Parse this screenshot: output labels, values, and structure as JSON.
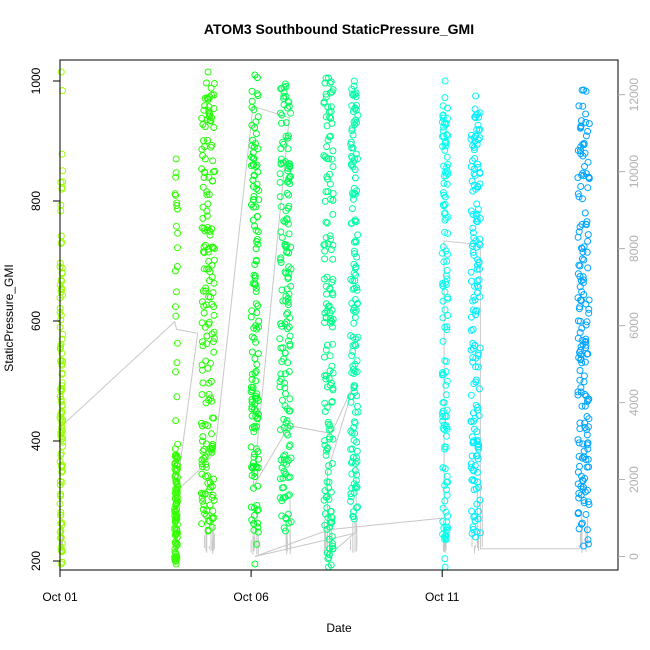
{
  "chart_data": {
    "type": "scatter",
    "title": "ATOM3 Southbound StaticPressure_GMI",
    "xlabel": "Date",
    "ylabel": "StaticPressure_GMI",
    "x_axis": {
      "type": "date",
      "ticks": [
        "Oct 01",
        "Oct 06",
        "Oct 11"
      ],
      "range_days": [
        0.0,
        14.6
      ]
    },
    "y_axis_left": {
      "range": [
        185,
        1035
      ],
      "ticks": [
        200,
        400,
        600,
        800,
        1000
      ]
    },
    "y_axis_right": {
      "color": "#b0b0b0",
      "range": [
        -350,
        12900
      ],
      "ticks": [
        0,
        2000,
        4000,
        6000,
        8000,
        10000,
        12000
      ]
    },
    "marker": "open-circle",
    "line_series": {
      "color": "#c8c8c8",
      "axis": "right"
    },
    "series": [
      {
        "x_start": 0.0,
        "x_end": 0.07,
        "y_min": 195,
        "y_max": 1015,
        "dense_min": 195,
        "dense_max": 700,
        "color": "#99ff00"
      },
      {
        "x_start": 3.0,
        "x_end": 3.08,
        "y_min": 195,
        "y_max": 870,
        "dense_min": 195,
        "dense_max": 380,
        "color": "#33ff00"
      },
      {
        "x_start": 3.7,
        "x_end": 4.05,
        "y_min": 250,
        "y_max": 1015,
        "dense_min": 250,
        "dense_max": 1000,
        "color": "#22ff00"
      },
      {
        "x_start": 5.0,
        "x_end": 5.2,
        "y_min": 195,
        "y_max": 1010,
        "dense_min": 260,
        "dense_max": 990,
        "color": "#00ff22"
      },
      {
        "x_start": 5.75,
        "x_end": 6.05,
        "y_min": 250,
        "y_max": 995,
        "dense_min": 255,
        "dense_max": 990,
        "color": "#00ff55"
      },
      {
        "x_start": 6.9,
        "x_end": 7.15,
        "y_min": 190,
        "y_max": 1005,
        "dense_min": 200,
        "dense_max": 1000,
        "color": "#00ff88"
      },
      {
        "x_start": 7.6,
        "x_end": 7.8,
        "y_min": 270,
        "y_max": 1000,
        "dense_min": 280,
        "dense_max": 995,
        "color": "#00ffaa"
      },
      {
        "x_start": 10.0,
        "x_end": 10.15,
        "y_min": 190,
        "y_max": 1000,
        "dense_min": 200,
        "dense_max": 960,
        "color": "#00ffee"
      },
      {
        "x_start": 10.75,
        "x_end": 11.0,
        "y_min": 240,
        "y_max": 975,
        "dense_min": 245,
        "dense_max": 960,
        "color": "#00eeff"
      },
      {
        "x_start": 13.55,
        "x_end": 13.85,
        "y_min": 225,
        "y_max": 985,
        "dense_min": 230,
        "dense_max": 960,
        "color": "#00a5ff"
      }
    ],
    "line_points": [
      [
        0.0,
        3300
      ],
      [
        0.05,
        3400
      ],
      [
        3.0,
        6100
      ],
      [
        3.05,
        5900
      ],
      [
        3.6,
        5800
      ],
      [
        3.05,
        1700
      ],
      [
        3.7,
        2300
      ],
      [
        4.05,
        2700
      ],
      [
        5.05,
        11700
      ],
      [
        6.0,
        11400
      ],
      [
        5.05,
        1800
      ],
      [
        6.0,
        3400
      ],
      [
        7.1,
        3200
      ],
      [
        7.7,
        4500
      ],
      [
        7.0,
        2200
      ],
      [
        7.0,
        0
      ],
      [
        7.7,
        600
      ],
      [
        5.1,
        0
      ],
      [
        7.05,
        700
      ],
      [
        10.05,
        1000
      ],
      [
        10.05,
        8200
      ],
      [
        11.0,
        8100
      ],
      [
        11.0,
        200
      ],
      [
        13.6,
        200
      ]
    ],
    "line_drops": [
      {
        "x": 3.82,
        "from": 1200,
        "to": 150
      },
      {
        "x": 3.95,
        "from": 1100,
        "to": 150
      },
      {
        "x": 4.02,
        "from": 900,
        "to": 150
      },
      {
        "x": 5.05,
        "from": 1100,
        "to": 50
      },
      {
        "x": 5.15,
        "from": 1300,
        "to": 50
      },
      {
        "x": 6.02,
        "from": 1500,
        "to": 200
      },
      {
        "x": 7.05,
        "from": 800,
        "to": 50
      },
      {
        "x": 7.75,
        "from": 2600,
        "to": 600
      },
      {
        "x": 10.08,
        "from": 700,
        "to": 100
      },
      {
        "x": 10.92,
        "from": 1900,
        "to": 300
      },
      {
        "x": 11.05,
        "from": 1500,
        "to": 250
      },
      {
        "x": 13.65,
        "from": 1100,
        "to": 250
      },
      {
        "x": 13.8,
        "from": 1000,
        "to": 250
      }
    ]
  }
}
